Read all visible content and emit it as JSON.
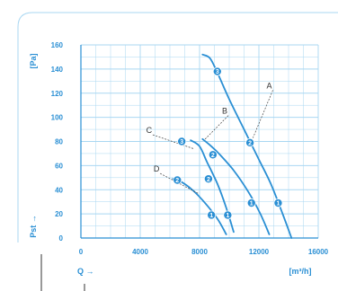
{
  "chart_data": {
    "type": "line",
    "title": "",
    "ylabel": "[Pa]",
    "ylabel_axis": "Pst →",
    "xlabel_axis": "Q →",
    "xunit": "[m³/h]",
    "xlim": [
      0,
      16000
    ],
    "ylim": [
      0,
      160
    ],
    "x_ticks": [
      0,
      4000,
      8000,
      12000,
      16000
    ],
    "x_tick_labels": [
      "0",
      "4000",
      "8000",
      "12000",
      "16000"
    ],
    "y_ticks": [
      0,
      20,
      40,
      60,
      80,
      100,
      120,
      140,
      160
    ],
    "y_tick_labels": [
      "0",
      "20",
      "40",
      "60",
      "80",
      "100",
      "120",
      "140",
      "160"
    ],
    "x_minor_step": 1000,
    "y_minor_step": 10,
    "grid": true,
    "colors": {
      "curve": "#2a8fd4",
      "grid": "#a9d7f2",
      "label": "#2a8fd4",
      "marker": "#2a8fd4"
    },
    "series": [
      {
        "name": "A",
        "x": [
          8200,
          8700,
          9200,
          10000,
          11000,
          12000,
          12800,
          13600,
          14200
        ],
        "y": [
          152,
          149,
          137,
          115,
          90,
          65,
          45,
          20,
          0
        ]
      },
      {
        "name": "B",
        "x": [
          8200,
          8700,
          9300,
          10300,
          11300,
          12100,
          12700
        ],
        "y": [
          82,
          77,
          70,
          56,
          38,
          20,
          3
        ]
      },
      {
        "name": "C",
        "x": [
          7400,
          8000,
          8500,
          9200,
          9800,
          10300
        ],
        "y": [
          81,
          76,
          63,
          45,
          25,
          5
        ]
      },
      {
        "name": "D",
        "x": [
          6200,
          6700,
          7500,
          8300,
          9200,
          9800
        ],
        "y": [
          49,
          47,
          40,
          30,
          16,
          3
        ]
      }
    ],
    "markers": [
      {
        "label": "3",
        "x": 9200,
        "y": 138
      },
      {
        "label": "2",
        "x": 11400,
        "y": 79
      },
      {
        "label": "1",
        "x": 11500,
        "y": 29
      },
      {
        "label": "1",
        "x": 13300,
        "y": 29
      },
      {
        "label": "2",
        "x": 8900,
        "y": 69
      },
      {
        "label": "2",
        "x": 8600,
        "y": 49
      },
      {
        "label": "1",
        "x": 9900,
        "y": 19
      },
      {
        "label": "3",
        "x": 6800,
        "y": 80
      },
      {
        "label": "2",
        "x": 6500,
        "y": 48
      },
      {
        "label": "1",
        "x": 8800,
        "y": 19
      }
    ],
    "annotations": [
      {
        "text": "A",
        "series": "A",
        "text_x": 12700,
        "text_y": 124,
        "point_x": 11600,
        "point_y": 83
      },
      {
        "text": "B",
        "series": "B",
        "text_x": 9700,
        "text_y": 103,
        "point_x": 8300,
        "point_y": 81
      },
      {
        "text": "C",
        "series": "C",
        "text_x": 4600,
        "text_y": 87,
        "point_x": 7600,
        "point_y": 74
      },
      {
        "text": "D",
        "series": "D",
        "text_x": 5100,
        "text_y": 55,
        "point_x": 7900,
        "point_y": 37
      }
    ]
  }
}
